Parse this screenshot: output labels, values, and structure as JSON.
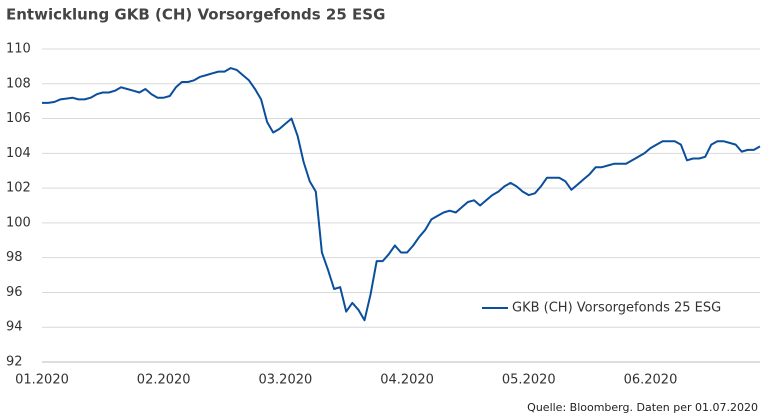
{
  "chart_data": {
    "type": "line",
    "title": "Entwicklung GKB (CH) Vorsorgefonds 25 ESG",
    "source": "Quelle: Bloomberg. Daten per 01.07.2020",
    "categories": [
      "01.2020",
      null,
      null,
      null,
      null,
      null,
      null,
      null,
      null,
      null,
      null,
      null,
      null,
      null,
      null,
      null,
      null,
      null,
      null,
      null,
      "02.2020",
      null,
      null,
      null,
      null,
      null,
      null,
      null,
      null,
      null,
      null,
      null,
      null,
      null,
      null,
      null,
      null,
      null,
      null,
      null,
      "03.2020",
      null,
      null,
      null,
      null,
      null,
      null,
      null,
      null,
      null,
      null,
      null,
      null,
      null,
      null,
      null,
      null,
      null,
      null,
      null,
      "04.2020",
      null,
      null,
      null,
      null,
      null,
      null,
      null,
      null,
      null,
      null,
      null,
      null,
      null,
      null,
      null,
      null,
      null,
      null,
      null,
      "05.2020",
      null,
      null,
      null,
      null,
      null,
      null,
      null,
      null,
      null,
      null,
      null,
      null,
      null,
      null,
      null,
      null,
      null,
      null,
      null,
      "06.2020",
      null,
      null,
      null,
      null,
      null,
      null,
      null,
      null,
      null,
      null,
      null,
      null,
      null,
      null,
      null,
      null,
      null,
      null
    ],
    "series": [
      {
        "name": "GKB (CH) Vorsorgefonds 25 ESG",
        "color": "#0b4f9c",
        "values": [
          106.9,
          106.9,
          106.95,
          107.1,
          107.15,
          107.2,
          107.1,
          107.1,
          107.2,
          107.4,
          107.5,
          107.5,
          107.6,
          107.8,
          107.7,
          107.6,
          107.5,
          107.7,
          107.4,
          107.2,
          107.2,
          107.3,
          107.8,
          108.1,
          108.1,
          108.2,
          108.4,
          108.5,
          108.6,
          108.7,
          108.7,
          108.9,
          108.8,
          108.5,
          108.2,
          107.7,
          107.1,
          105.8,
          105.2,
          105.4,
          105.7,
          106.0,
          105.0,
          103.5,
          102.4,
          101.8,
          98.3,
          97.3,
          96.2,
          96.3,
          94.9,
          95.4,
          95.0,
          94.4,
          95.9,
          97.8,
          97.8,
          98.2,
          98.7,
          98.3,
          98.3,
          98.7,
          99.2,
          99.6,
          100.2,
          100.4,
          100.6,
          100.7,
          100.6,
          100.9,
          101.2,
          101.3,
          101.0,
          101.3,
          101.6,
          101.8,
          102.1,
          102.3,
          102.1,
          101.8,
          101.6,
          101.7,
          102.1,
          102.6,
          102.6,
          102.6,
          102.4,
          101.9,
          102.2,
          102.5,
          102.8,
          103.2,
          103.2,
          103.3,
          103.4,
          103.4,
          103.4,
          103.6,
          103.8,
          104.0,
          104.3,
          104.5,
          104.7,
          104.7,
          104.7,
          104.5,
          103.6,
          103.7,
          103.7,
          103.8,
          104.5,
          104.7,
          104.7,
          104.6,
          104.5,
          104.1,
          104.2,
          104.2,
          104.4
        ]
      }
    ],
    "ylim": [
      92,
      110
    ],
    "yticks": [
      92,
      94,
      96,
      98,
      100,
      102,
      104,
      106,
      108,
      110
    ],
    "grid": true,
    "legend": "lower right"
  }
}
